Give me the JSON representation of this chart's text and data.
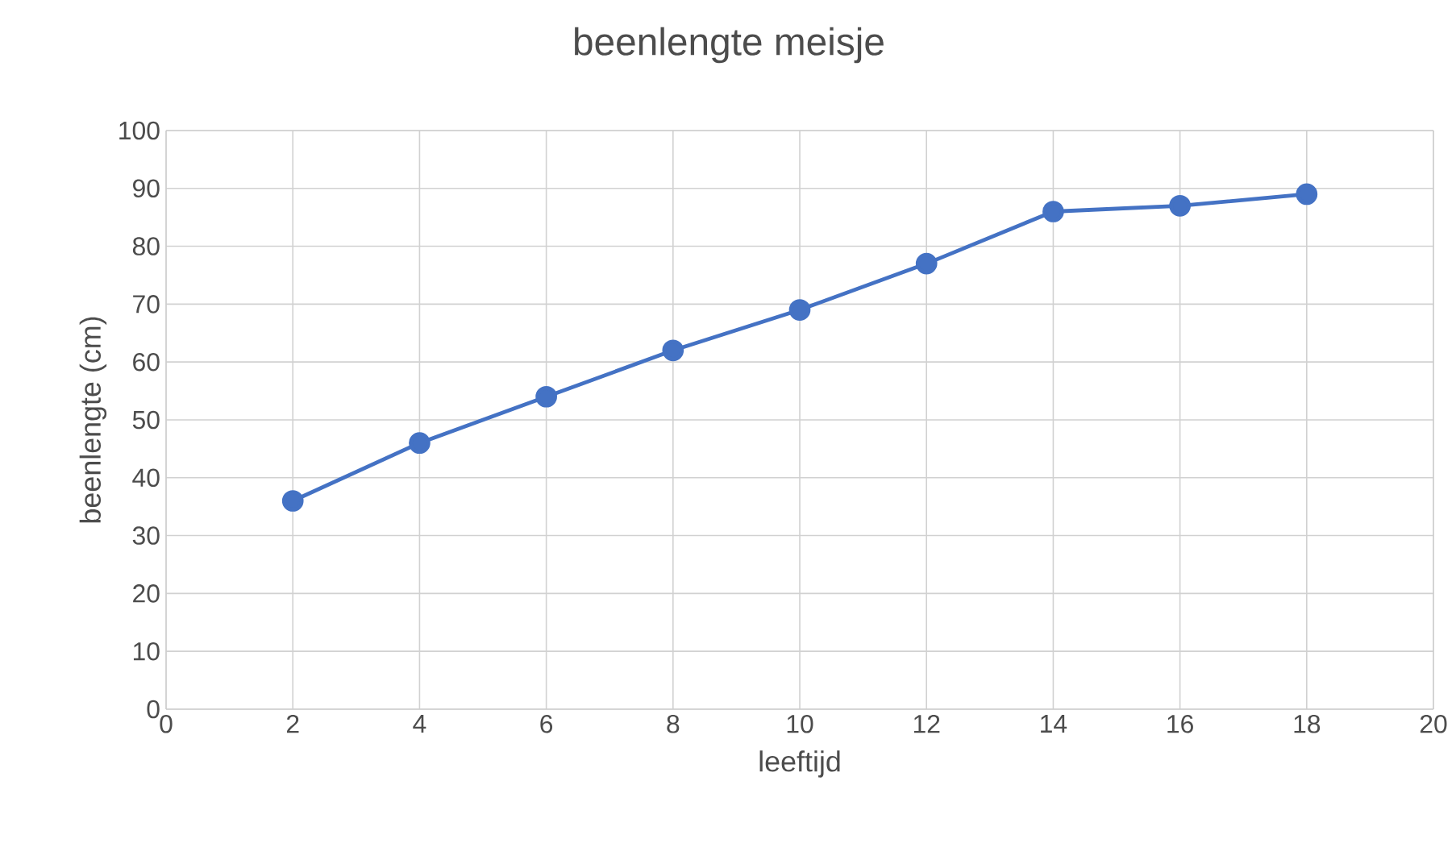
{
  "chart_data": {
    "type": "line",
    "title": "beenlengte meisje",
    "xlabel": "leeftijd",
    "ylabel": "beenlengte (cm)",
    "x": [
      2,
      4,
      6,
      8,
      10,
      12,
      14,
      16,
      18
    ],
    "series": [
      {
        "color": "#4472c4",
        "values": [
          36,
          46,
          54,
          62,
          69,
          77,
          86,
          87,
          89
        ]
      }
    ],
    "xlim": [
      0,
      20
    ],
    "xticks": [
      0,
      2,
      4,
      6,
      8,
      10,
      12,
      14,
      16,
      18,
      20
    ],
    "ylim": [
      0,
      100
    ],
    "yticks": [
      0,
      10,
      20,
      30,
      40,
      50,
      60,
      70,
      80,
      90,
      100
    ],
    "grid": true,
    "marker": "circle",
    "line_style": "solid"
  }
}
